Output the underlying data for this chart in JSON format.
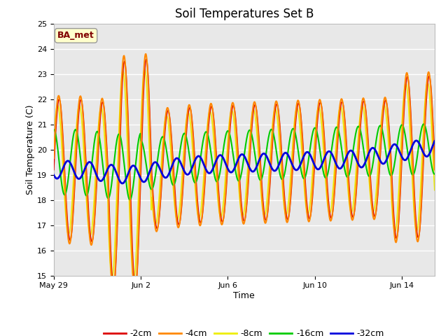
{
  "title": "Soil Temperatures Set B",
  "xlabel": "Time",
  "ylabel": "Soil Temperature (C)",
  "ylim": [
    15.0,
    25.0
  ],
  "yticks": [
    15.0,
    16.0,
    17.0,
    18.0,
    19.0,
    20.0,
    21.0,
    22.0,
    23.0,
    24.0,
    25.0
  ],
  "num_days": 17.5,
  "xtick_labels": [
    "May 29",
    "Jun 2",
    "Jun 6",
    "Jun 10",
    "Jun 14"
  ],
  "xtick_positions": [
    0,
    4,
    8,
    12,
    16
  ],
  "legend_labels": [
    "-2cm",
    "-4cm",
    "-8cm",
    "-16cm",
    "-32cm"
  ],
  "legend_colors": [
    "#dd0000",
    "#ff8800",
    "#eeee00",
    "#00cc00",
    "#0000dd"
  ],
  "annotation_text": "BA_met",
  "annotation_color": "#800000",
  "annotation_bg": "#ffffcc",
  "annotation_border": "#999999",
  "fig_bg": "#ffffff",
  "plot_bg": "#e8e8e8",
  "grid_color": "#ffffff",
  "title_fontsize": 12,
  "axis_label_fontsize": 9,
  "tick_fontsize": 8
}
